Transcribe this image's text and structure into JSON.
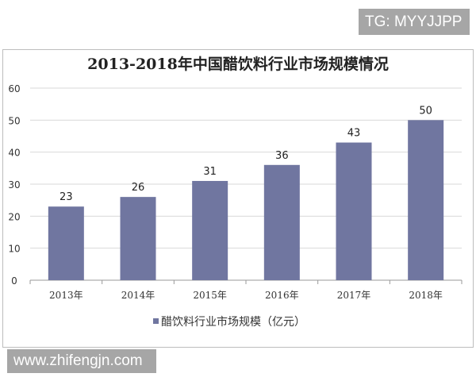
{
  "watermarks": {
    "top_right": "TG: MYYJJPP",
    "bottom_left": "www.zhifengjn.com"
  },
  "chart_data": {
    "type": "bar",
    "title": "2013-2018年中国醋饮料行业市场规模情况",
    "categories": [
      "2013年",
      "2014年",
      "2015年",
      "2016年",
      "2017年",
      "2018年"
    ],
    "series": [
      {
        "name": "醋饮料行业市场规模（亿元）",
        "values": [
          23,
          26,
          31,
          36,
          43,
          50
        ],
        "color": "#7076a0"
      }
    ],
    "yticks": [
      0,
      10,
      20,
      30,
      40,
      50,
      60
    ],
    "ylim": [
      0,
      60
    ],
    "grid": true,
    "legend": "bottom",
    "data_labels": true
  }
}
